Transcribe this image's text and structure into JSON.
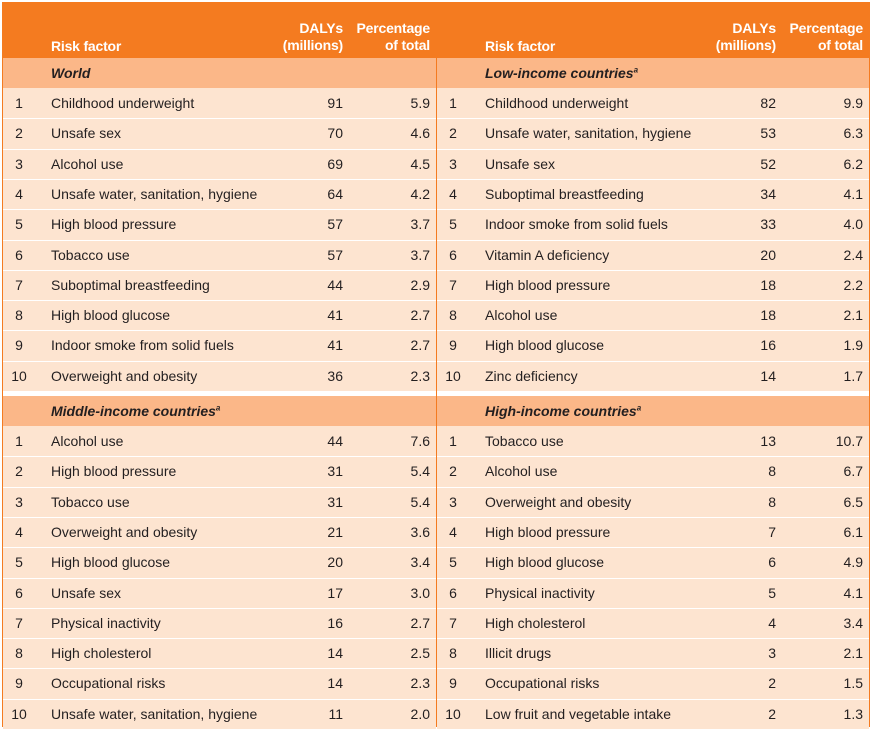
{
  "headers": {
    "risk_factor": "Risk factor",
    "dalys_line1": "DALYs",
    "dalys_line2": "(millions)",
    "pct_line1": "Percentage",
    "pct_line2": "of total"
  },
  "panels": [
    {
      "title": "World",
      "superscript": "",
      "rows": [
        {
          "rank": "1",
          "name": "Childhood underweight",
          "dalys": "91",
          "pct": "5.9"
        },
        {
          "rank": "2",
          "name": "Unsafe sex",
          "dalys": "70",
          "pct": "4.6"
        },
        {
          "rank": "3",
          "name": "Alcohol use",
          "dalys": "69",
          "pct": "4.5"
        },
        {
          "rank": "4",
          "name": "Unsafe water, sanitation, hygiene",
          "dalys": "64",
          "pct": "4.2"
        },
        {
          "rank": "5",
          "name": "High blood pressure",
          "dalys": "57",
          "pct": "3.7"
        },
        {
          "rank": "6",
          "name": "Tobacco use",
          "dalys": "57",
          "pct": "3.7"
        },
        {
          "rank": "7",
          "name": "Suboptimal breastfeeding",
          "dalys": "44",
          "pct": "2.9"
        },
        {
          "rank": "8",
          "name": "High blood glucose",
          "dalys": "41",
          "pct": "2.7"
        },
        {
          "rank": "9",
          "name": "Indoor smoke from solid fuels",
          "dalys": "41",
          "pct": "2.7"
        },
        {
          "rank": "10",
          "name": "Overweight and obesity",
          "dalys": "36",
          "pct": "2.3"
        }
      ]
    },
    {
      "title": "Low-income countries",
      "superscript": "a",
      "rows": [
        {
          "rank": "1",
          "name": "Childhood underweight",
          "dalys": "82",
          "pct": "9.9"
        },
        {
          "rank": "2",
          "name": "Unsafe water, sanitation, hygiene",
          "dalys": "53",
          "pct": "6.3"
        },
        {
          "rank": "3",
          "name": "Unsafe sex",
          "dalys": "52",
          "pct": "6.2"
        },
        {
          "rank": "4",
          "name": "Suboptimal breastfeeding",
          "dalys": "34",
          "pct": "4.1"
        },
        {
          "rank": "5",
          "name": "Indoor smoke from solid fuels",
          "dalys": "33",
          "pct": "4.0"
        },
        {
          "rank": "6",
          "name": "Vitamin A deficiency",
          "dalys": "20",
          "pct": "2.4"
        },
        {
          "rank": "7",
          "name": "High blood pressure",
          "dalys": "18",
          "pct": "2.2"
        },
        {
          "rank": "8",
          "name": "Alcohol use",
          "dalys": "18",
          "pct": "2.1"
        },
        {
          "rank": "9",
          "name": "High blood glucose",
          "dalys": "16",
          "pct": "1.9"
        },
        {
          "rank": "10",
          "name": "Zinc deficiency",
          "dalys": "14",
          "pct": "1.7"
        }
      ]
    },
    {
      "title": "Middle-income countries",
      "superscript": "a",
      "rows": [
        {
          "rank": "1",
          "name": "Alcohol use",
          "dalys": "44",
          "pct": "7.6"
        },
        {
          "rank": "2",
          "name": "High blood pressure",
          "dalys": "31",
          "pct": "5.4"
        },
        {
          "rank": "3",
          "name": "Tobacco use",
          "dalys": "31",
          "pct": "5.4"
        },
        {
          "rank": "4",
          "name": "Overweight and obesity",
          "dalys": "21",
          "pct": "3.6"
        },
        {
          "rank": "5",
          "name": "High blood glucose",
          "dalys": "20",
          "pct": "3.4"
        },
        {
          "rank": "6",
          "name": "Unsafe sex",
          "dalys": "17",
          "pct": "3.0"
        },
        {
          "rank": "7",
          "name": "Physical inactivity",
          "dalys": "16",
          "pct": "2.7"
        },
        {
          "rank": "8",
          "name": "High cholesterol",
          "dalys": "14",
          "pct": "2.5"
        },
        {
          "rank": "9",
          "name": "Occupational risks",
          "dalys": "14",
          "pct": "2.3"
        },
        {
          "rank": "10",
          "name": "Unsafe water, sanitation, hygiene",
          "dalys": "11",
          "pct": "2.0"
        }
      ]
    },
    {
      "title": "High-income countries",
      "superscript": "a",
      "rows": [
        {
          "rank": "1",
          "name": "Tobacco use",
          "dalys": "13",
          "pct": "10.7"
        },
        {
          "rank": "2",
          "name": "Alcohol use",
          "dalys": "8",
          "pct": "6.7"
        },
        {
          "rank": "3",
          "name": "Overweight and obesity",
          "dalys": "8",
          "pct": "6.5"
        },
        {
          "rank": "4",
          "name": "High blood pressure",
          "dalys": "7",
          "pct": "6.1"
        },
        {
          "rank": "5",
          "name": "High blood glucose",
          "dalys": "6",
          "pct": "4.9"
        },
        {
          "rank": "6",
          "name": "Physical inactivity",
          "dalys": "5",
          "pct": "4.1"
        },
        {
          "rank": "7",
          "name": "High cholesterol",
          "dalys": "4",
          "pct": "3.4"
        },
        {
          "rank": "8",
          "name": "Illicit drugs",
          "dalys": "3",
          "pct": "2.1"
        },
        {
          "rank": "9",
          "name": "Occupational risks",
          "dalys": "2",
          "pct": "1.5"
        },
        {
          "rank": "10",
          "name": "Low fruit and vegetable intake",
          "dalys": "2",
          "pct": "1.3"
        }
      ]
    }
  ],
  "colors": {
    "header_orange": "#f47b20",
    "section_band": "#fbb788",
    "row_fill": "#fde4d0",
    "text": "#231f20"
  }
}
